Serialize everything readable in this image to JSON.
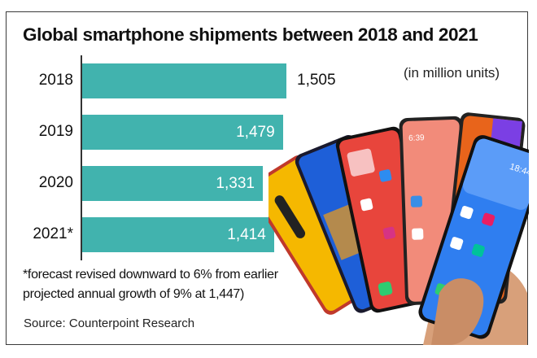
{
  "chart_data": {
    "type": "bar",
    "orientation": "horizontal",
    "title": "Global smartphone shipments between 2018 and 2021",
    "unit_label": "(in million units)",
    "categories": [
      "2018",
      "2019",
      "2020",
      "2021*"
    ],
    "values": [
      1505,
      1479,
      1331,
      1414
    ],
    "value_labels": [
      "1,505",
      "1,479",
      "1,331",
      "1,414"
    ],
    "xlabel": "",
    "ylabel": "",
    "xlim": [
      0,
      1505
    ],
    "grid": false,
    "legend": "none",
    "bar_color": "#41b3ae",
    "footnote_lines": [
      "*forecast revised downward to 6% from earlier",
      "projected annual growth of 9% at 1,447)"
    ],
    "source": "Source: Counterpoint Research"
  },
  "decoration": {
    "image": "hand-holding-fan-of-smartphones"
  }
}
